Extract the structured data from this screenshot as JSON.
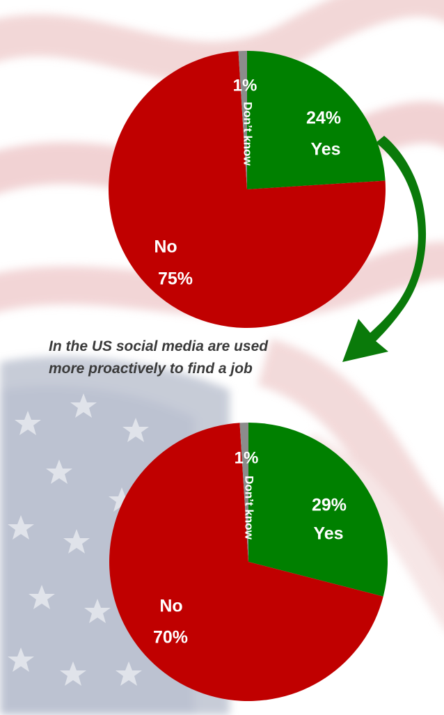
{
  "caption": {
    "line1": "In the US social media are used",
    "line2": "more proactively to find a job"
  },
  "colors": {
    "yes": "#008000",
    "no": "#c00000",
    "dont_know": "#8c8c8c",
    "arrow": "#0a7a0a"
  },
  "chart_data": [
    {
      "type": "pie",
      "categories": [
        "Yes",
        "No",
        "Don't know"
      ],
      "values": [
        24,
        75,
        1
      ],
      "labels": {
        "yes_pct": "24%",
        "yes_name": "Yes",
        "no_name": "No",
        "no_pct": "75%",
        "dk_pct": "1%",
        "dk_name": "Don’t know"
      }
    },
    {
      "type": "pie",
      "categories": [
        "Yes",
        "No",
        "Don't know"
      ],
      "values": [
        29,
        70,
        1
      ],
      "labels": {
        "yes_pct": "29%",
        "yes_name": "Yes",
        "no_name": "No",
        "no_pct": "70%",
        "dk_pct": "1%",
        "dk_name": "Don’t know"
      }
    }
  ]
}
